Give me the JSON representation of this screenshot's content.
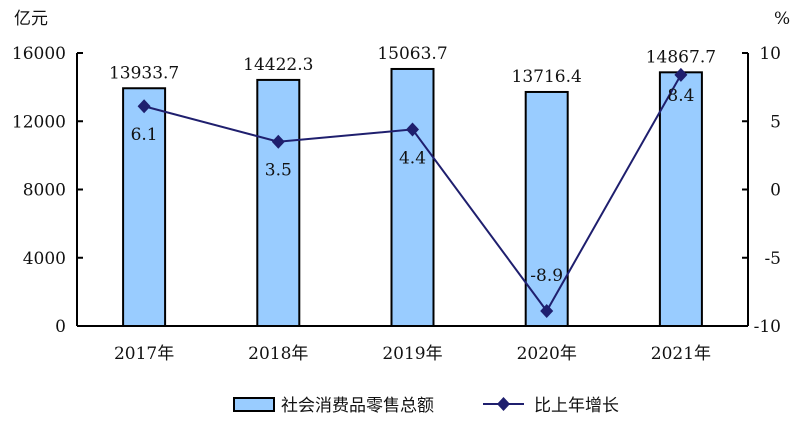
{
  "chart_data": {
    "type": "bar+line",
    "categories": [
      "2017年",
      "2018年",
      "2019年",
      "2020年",
      "2021年"
    ],
    "series": [
      {
        "name": "社会消费品零售总额",
        "type": "bar",
        "axis": "left",
        "values": [
          13933.7,
          14422.3,
          15063.7,
          13716.4,
          14867.7
        ],
        "labels": [
          "13933.7",
          "14422.3",
          "15063.7",
          "13716.4",
          "14867.7"
        ],
        "color": "#99CCFF"
      },
      {
        "name": "比上年增长",
        "type": "line",
        "axis": "right",
        "values": [
          6.1,
          3.5,
          4.4,
          -8.9,
          8.4
        ],
        "labels": [
          "6.1",
          "3.5",
          "4.4",
          "-8.9",
          "8.4"
        ],
        "color": "#1F1F6E",
        "marker": "diamond"
      }
    ],
    "left_axis": {
      "unit": "亿元",
      "ylim": [
        0,
        16000
      ],
      "ticks": [
        "0",
        "4000",
        "8000",
        "12000",
        "16000"
      ]
    },
    "right_axis": {
      "unit": "%",
      "ylim": [
        -10,
        10
      ],
      "ticks": [
        "-10",
        "-5",
        "0",
        "5",
        "10"
      ]
    },
    "grid": false,
    "legend_position": "bottom"
  }
}
